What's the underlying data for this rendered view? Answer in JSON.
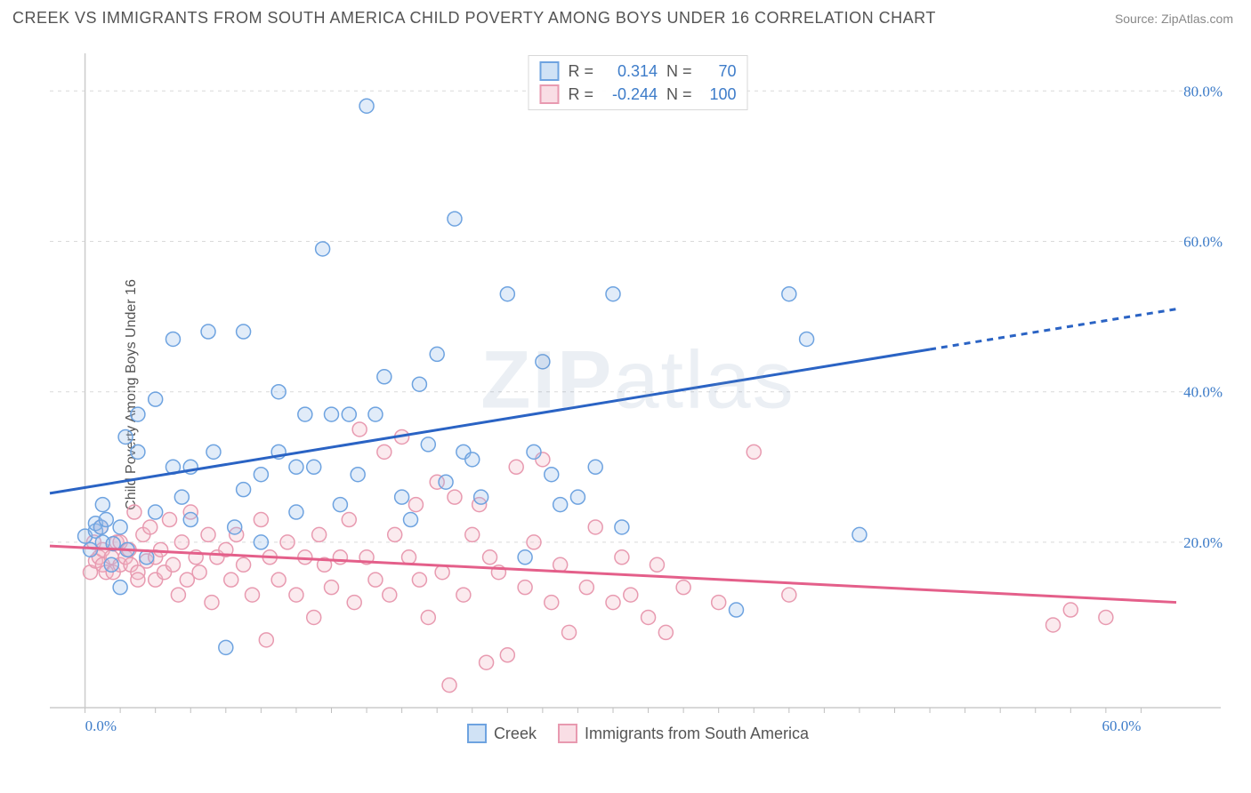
{
  "title": "CREEK VS IMMIGRANTS FROM SOUTH AMERICA CHILD POVERTY AMONG BOYS UNDER 16 CORRELATION CHART",
  "source": "Source: ZipAtlas.com",
  "watermark_prefix": "ZIP",
  "watermark_suffix": "atlas",
  "y_axis_title": "Child Poverty Among Boys Under 16",
  "chart": {
    "type": "scatter",
    "background_color": "#ffffff",
    "grid_color": "#d9d9d9",
    "axis_color": "#cccccc",
    "tick_color": "#bfbfbf",
    "x_range": [
      -2,
      62
    ],
    "y_range": [
      -2,
      85
    ],
    "x_ticks_major": [
      0,
      60
    ],
    "x_ticks_major_labels": [
      "0.0%",
      "60.0%"
    ],
    "x_tick_label_color": "#3d7cc9",
    "x_ticks_minor_step": 2,
    "y_ticks_major": [
      20,
      40,
      60,
      80
    ],
    "y_ticks_major_labels": [
      "20.0%",
      "40.0%",
      "60.0%",
      "80.0%"
    ],
    "y_tick_label_color": "#3d7cc9",
    "marker_radius": 8,
    "marker_stroke_width": 1.5,
    "marker_fill_opacity": 0.3,
    "tick_label_fontsize": 17,
    "tick_label_fontfamily": "Comic Sans MS"
  },
  "series": {
    "creek": {
      "label": "Creek",
      "color_stroke": "#6ea3e0",
      "color_fill": "#9ac0ea",
      "trend_color": "#2a63c4",
      "trend_width": 3,
      "R": "0.314",
      "N": "70",
      "trend_y_at_xmin": 26.5,
      "trend_y_at_xmax": 51.0,
      "trend_dash_start_x": 48,
      "points": [
        [
          0,
          20.8
        ],
        [
          0.3,
          19
        ],
        [
          0.6,
          21.5
        ],
        [
          0.6,
          22.5
        ],
        [
          0.9,
          22
        ],
        [
          1,
          20
        ],
        [
          1,
          25
        ],
        [
          1.2,
          23
        ],
        [
          1.5,
          17
        ],
        [
          1.6,
          19.8
        ],
        [
          2,
          22
        ],
        [
          2,
          14
        ],
        [
          2.3,
          34
        ],
        [
          2.4,
          19
        ],
        [
          3,
          32
        ],
        [
          3,
          37
        ],
        [
          3.5,
          18
        ],
        [
          4,
          24
        ],
        [
          4,
          39
        ],
        [
          5,
          30
        ],
        [
          5,
          47
        ],
        [
          5.5,
          26
        ],
        [
          6,
          23
        ],
        [
          6,
          30
        ],
        [
          7,
          48
        ],
        [
          7.3,
          32
        ],
        [
          8,
          6
        ],
        [
          8.5,
          22
        ],
        [
          9,
          27
        ],
        [
          9,
          48
        ],
        [
          10,
          29
        ],
        [
          10,
          20
        ],
        [
          11,
          32
        ],
        [
          11,
          40
        ],
        [
          12,
          24
        ],
        [
          12,
          30
        ],
        [
          12.5,
          37
        ],
        [
          13,
          30
        ],
        [
          13.5,
          59
        ],
        [
          14,
          37
        ],
        [
          14.5,
          25
        ],
        [
          15,
          37
        ],
        [
          15.5,
          29
        ],
        [
          16,
          78
        ],
        [
          16.5,
          37
        ],
        [
          17,
          42
        ],
        [
          18,
          26
        ],
        [
          18.5,
          23
        ],
        [
          19,
          41
        ],
        [
          19.5,
          33
        ],
        [
          20,
          45
        ],
        [
          20.5,
          28
        ],
        [
          21,
          63
        ],
        [
          21.5,
          32
        ],
        [
          22,
          31
        ],
        [
          22.5,
          26
        ],
        [
          24,
          53
        ],
        [
          25,
          18
        ],
        [
          25.5,
          32
        ],
        [
          26,
          44
        ],
        [
          26.5,
          29
        ],
        [
          27,
          25
        ],
        [
          28,
          26
        ],
        [
          29,
          30
        ],
        [
          30,
          53
        ],
        [
          30.5,
          22
        ],
        [
          37,
          11
        ],
        [
          40,
          53
        ],
        [
          41,
          47
        ],
        [
          44,
          21
        ]
      ]
    },
    "immigrants": {
      "label": "Immigrants from South America",
      "color_stroke": "#e89ab0",
      "color_fill": "#f2b9c8",
      "trend_color": "#e45f8a",
      "trend_width": 3,
      "R": "-0.244",
      "N": "100",
      "trend_y_at_xmin": 19.5,
      "trend_y_at_xmax": 12.0,
      "points": [
        [
          0.3,
          16
        ],
        [
          0.5,
          20
        ],
        [
          0.6,
          17.5
        ],
        [
          0.8,
          18
        ],
        [
          0.9,
          22
        ],
        [
          1,
          17
        ],
        [
          1,
          19
        ],
        [
          1.2,
          16
        ],
        [
          1.5,
          18
        ],
        [
          1.6,
          16
        ],
        [
          1.8,
          20
        ],
        [
          2,
          17
        ],
        [
          2,
          20
        ],
        [
          2.3,
          18
        ],
        [
          2.5,
          19
        ],
        [
          2.6,
          17
        ],
        [
          2.8,
          24
        ],
        [
          3,
          16
        ],
        [
          3,
          15
        ],
        [
          3.3,
          21
        ],
        [
          3.5,
          17.5
        ],
        [
          3.7,
          22
        ],
        [
          4,
          18
        ],
        [
          4,
          15
        ],
        [
          4.3,
          19
        ],
        [
          4.5,
          16
        ],
        [
          4.8,
          23
        ],
        [
          5,
          17
        ],
        [
          5.3,
          13
        ],
        [
          5.5,
          20
        ],
        [
          5.8,
          15
        ],
        [
          6,
          24
        ],
        [
          6.3,
          18
        ],
        [
          6.5,
          16
        ],
        [
          7,
          21
        ],
        [
          7.2,
          12
        ],
        [
          7.5,
          18
        ],
        [
          8,
          19
        ],
        [
          8.3,
          15
        ],
        [
          8.6,
          21
        ],
        [
          9,
          17
        ],
        [
          9.5,
          13
        ],
        [
          10,
          23
        ],
        [
          10.3,
          7
        ],
        [
          10.5,
          18
        ],
        [
          11,
          15
        ],
        [
          11.5,
          20
        ],
        [
          12,
          13
        ],
        [
          12.5,
          18
        ],
        [
          13,
          10
        ],
        [
          13.3,
          21
        ],
        [
          13.6,
          17
        ],
        [
          14,
          14
        ],
        [
          14.5,
          18
        ],
        [
          15,
          23
        ],
        [
          15.3,
          12
        ],
        [
          15.6,
          35
        ],
        [
          16,
          18
        ],
        [
          16.5,
          15
        ],
        [
          17,
          32
        ],
        [
          17.3,
          13
        ],
        [
          17.6,
          21
        ],
        [
          18,
          34
        ],
        [
          18.4,
          18
        ],
        [
          18.8,
          25
        ],
        [
          19,
          15
        ],
        [
          19.5,
          10
        ],
        [
          20,
          28
        ],
        [
          20.3,
          16
        ],
        [
          20.7,
          1
        ],
        [
          21,
          26
        ],
        [
          21.5,
          13
        ],
        [
          22,
          21
        ],
        [
          22.4,
          25
        ],
        [
          22.8,
          4
        ],
        [
          23,
          18
        ],
        [
          23.5,
          16
        ],
        [
          24,
          5
        ],
        [
          24.5,
          30
        ],
        [
          25,
          14
        ],
        [
          25.5,
          20
        ],
        [
          26,
          31
        ],
        [
          26.5,
          12
        ],
        [
          27,
          17
        ],
        [
          27.5,
          8
        ],
        [
          28.5,
          14
        ],
        [
          29,
          22
        ],
        [
          30,
          12
        ],
        [
          30.5,
          18
        ],
        [
          31,
          13
        ],
        [
          32,
          10
        ],
        [
          32.5,
          17
        ],
        [
          33,
          8
        ],
        [
          34,
          14
        ],
        [
          36,
          12
        ],
        [
          38,
          32
        ],
        [
          40,
          13
        ],
        [
          55,
          9
        ],
        [
          56,
          11
        ],
        [
          58,
          10
        ]
      ]
    }
  },
  "stats_legend": {
    "r_label": "R =",
    "n_label": "N ="
  }
}
